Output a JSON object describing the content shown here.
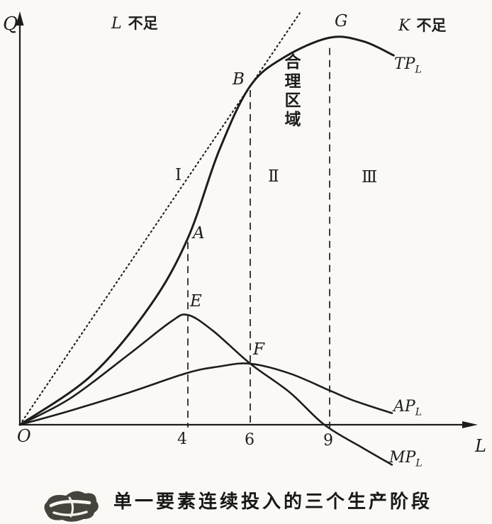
{
  "figure": {
    "caption": "单一要素连续投入的三个生产阶段",
    "axes": {
      "y_label": "Q",
      "x_label": "L",
      "origin_label": "O"
    },
    "x_tick_labels": [
      "4",
      "6",
      "9"
    ],
    "regions": {
      "left": {
        "factor": "L",
        "text": "不足"
      },
      "right": {
        "factor": "K",
        "text": "不足"
      },
      "rational": "合理区域"
    },
    "stages": [
      "Ⅰ",
      "Ⅱ",
      "Ⅲ"
    ],
    "points": {
      "A": "A",
      "B": "B",
      "E": "E",
      "F": "F",
      "G": "G"
    },
    "curve_labels": {
      "tp": {
        "main": "TP",
        "sub": "L"
      },
      "ap": {
        "main": "AP",
        "sub": "L"
      },
      "mp": {
        "main": "MP",
        "sub": "L"
      }
    },
    "ink_color": "#1d1d1b"
  },
  "chart_data": {
    "type": "line",
    "title": "单一要素连续投入的三个生产阶段",
    "xlabel": "L",
    "ylabel": "Q",
    "x_ticks": [
      4,
      6,
      9
    ],
    "xlim": [
      0,
      11.3
    ],
    "ylim": [
      -12,
      105
    ],
    "grid": false,
    "legend_position": "inline-end-of-curve",
    "series": [
      {
        "name": "TP_L",
        "points": [
          [
            0,
            0
          ],
          [
            1.7,
            11.9
          ],
          [
            3.1,
            28.8
          ],
          [
            4,
            45.2
          ],
          [
            5,
            66.4
          ],
          [
            6,
            82.1
          ],
          [
            7.3,
            89.1
          ],
          [
            9,
            93.8
          ],
          [
            10,
            92.9
          ],
          [
            10.9,
            89.5
          ]
        ]
      },
      {
        "name": "AP_L",
        "points": [
          [
            0,
            0
          ],
          [
            1.2,
            3.4
          ],
          [
            2.6,
            7.8
          ],
          [
            4,
            12.6
          ],
          [
            5,
            14.1
          ],
          [
            6,
            14.8
          ],
          [
            7.5,
            12.4
          ],
          [
            9,
            8.3
          ],
          [
            9.7,
            5.9
          ],
          [
            10.85,
            2.8
          ]
        ]
      },
      {
        "name": "MP_L",
        "points": [
          [
            0,
            0
          ],
          [
            1.2,
            6.4
          ],
          [
            2.6,
            17.1
          ],
          [
            3.6,
            25
          ],
          [
            4,
            26.6
          ],
          [
            4.8,
            22.8
          ],
          [
            6,
            14.8
          ],
          [
            7.5,
            7.8
          ],
          [
            8.8,
            0
          ],
          [
            10,
            -5.7
          ],
          [
            10.85,
            -9.7
          ]
        ]
      }
    ],
    "tangent_ray": {
      "style": "dotted",
      "from_origin": true,
      "tangent_at_L": 6
    },
    "dashed_verticals": [
      {
        "L": 4,
        "q_top": 44.3
      },
      {
        "L": 6,
        "q_top": 81.1
      },
      {
        "L": 9,
        "q_top": 91.3
      }
    ],
    "key_points": [
      {
        "label": "A",
        "curve": "TP_L",
        "L": 4
      },
      {
        "label": "B",
        "curve": "TP_L",
        "L": 6
      },
      {
        "label": "G",
        "curve": "TP_L",
        "L": 9
      },
      {
        "label": "E",
        "curve": "MP_L",
        "L": 4
      },
      {
        "label": "F",
        "curve": "AP_L",
        "L": 6
      }
    ]
  }
}
